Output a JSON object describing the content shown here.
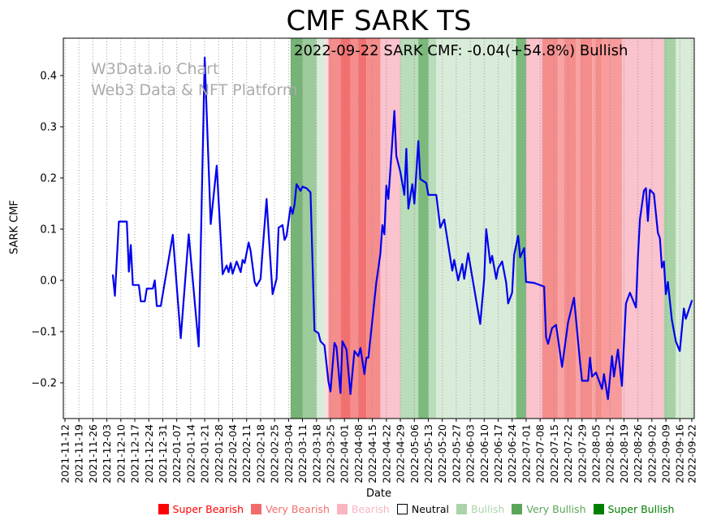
{
  "page": {
    "background": "#ffffff"
  },
  "title": "CMF SARK TS",
  "watermark": {
    "line1": "W3Data.io Chart",
    "line2": "Web3 Data & NFT Platform",
    "color": "#ababab"
  },
  "annotation": {
    "text": "2022-09-22 SARK CMF: -0.04(+54.8%) Bullish"
  },
  "chart_data": {
    "type": "line",
    "title": "CMF SARK TS",
    "xlabel": "Date",
    "ylabel": "SARK CMF",
    "x_range": [
      "2021-11-12",
      "2022-09-22"
    ],
    "ylim": [
      -0.27,
      0.473
    ],
    "grid": "vertical-dotted",
    "line_color": "#0000ee",
    "yticks": [
      0.4,
      0.3,
      0.2,
      0.1,
      0.0,
      -0.1,
      -0.2
    ],
    "ytick_labels": [
      "0.4",
      "0.3",
      "0.2",
      "0.1",
      "0.0",
      "−0.1",
      "−0.2"
    ],
    "xticks": [
      "2021-11-12",
      "2021-11-19",
      "2021-11-26",
      "2021-12-03",
      "2021-12-10",
      "2021-12-17",
      "2021-12-24",
      "2021-12-31",
      "2022-01-07",
      "2022-01-14",
      "2022-01-21",
      "2022-01-28",
      "2022-02-04",
      "2022-02-11",
      "2022-02-18",
      "2022-02-25",
      "2022-03-04",
      "2022-03-11",
      "2022-03-18",
      "2022-03-25",
      "2022-04-01",
      "2022-04-08",
      "2022-04-15",
      "2022-04-22",
      "2022-04-29",
      "2022-05-06",
      "2022-05-13",
      "2022-05-20",
      "2022-05-27",
      "2022-06-03",
      "2022-06-10",
      "2022-06-17",
      "2022-06-24",
      "2022-07-01",
      "2022-07-08",
      "2022-07-15",
      "2022-07-22",
      "2022-07-29",
      "2022-08-05",
      "2022-08-12",
      "2022-08-19",
      "2022-08-26",
      "2022-09-02",
      "2022-09-09",
      "2022-09-16",
      "2022-09-22"
    ],
    "series": [
      {
        "name": "SARK CMF",
        "points": [
          [
            "2021-12-06",
            0.01
          ],
          [
            "2021-12-07",
            -0.03
          ],
          [
            "2021-12-09",
            0.115
          ],
          [
            "2021-12-13",
            0.115
          ],
          [
            "2021-12-14",
            0.017
          ],
          [
            "2021-12-15",
            0.069
          ],
          [
            "2021-12-16",
            -0.009
          ],
          [
            "2021-12-19",
            -0.009
          ],
          [
            "2021-12-20",
            -0.041
          ],
          [
            "2021-12-22",
            -0.041
          ],
          [
            "2021-12-23",
            -0.016
          ],
          [
            "2021-12-26",
            -0.016
          ],
          [
            "2021-12-27",
            0.0
          ],
          [
            "2021-12-28",
            -0.05
          ],
          [
            "2021-12-30",
            -0.05
          ],
          [
            "2022-01-05",
            0.089
          ],
          [
            "2022-01-09",
            -0.113
          ],
          [
            "2022-01-13",
            0.09
          ],
          [
            "2022-01-18",
            -0.129
          ],
          [
            "2022-01-21",
            0.435
          ],
          [
            "2022-01-24",
            0.11
          ],
          [
            "2022-01-27",
            0.224
          ],
          [
            "2022-01-30",
            0.012
          ],
          [
            "2022-02-01",
            0.029
          ],
          [
            "2022-02-02",
            0.016
          ],
          [
            "2022-02-03",
            0.034
          ],
          [
            "2022-02-04",
            0.013
          ],
          [
            "2022-02-06",
            0.037
          ],
          [
            "2022-02-08",
            0.016
          ],
          [
            "2022-02-09",
            0.04
          ],
          [
            "2022-02-10",
            0.034
          ],
          [
            "2022-02-12",
            0.074
          ],
          [
            "2022-02-13",
            0.058
          ],
          [
            "2022-02-15",
            -0.003
          ],
          [
            "2022-02-16",
            -0.011
          ],
          [
            "2022-02-18",
            0.003
          ],
          [
            "2022-02-19",
            0.058
          ],
          [
            "2022-02-21",
            0.159
          ],
          [
            "2022-02-22",
            0.093
          ],
          [
            "2022-02-24",
            -0.027
          ],
          [
            "2022-02-26",
            0.003
          ],
          [
            "2022-02-27",
            0.103
          ],
          [
            "2022-03-01",
            0.108
          ],
          [
            "2022-03-02",
            0.079
          ],
          [
            "2022-03-03",
            0.087
          ],
          [
            "2022-03-05",
            0.143
          ],
          [
            "2022-03-06",
            0.13
          ],
          [
            "2022-03-07",
            0.148
          ],
          [
            "2022-03-08",
            0.188
          ],
          [
            "2022-03-10",
            0.175
          ],
          [
            "2022-03-11",
            0.183
          ],
          [
            "2022-03-13",
            0.18
          ],
          [
            "2022-03-15",
            0.172
          ],
          [
            "2022-03-17",
            -0.098
          ],
          [
            "2022-03-19",
            -0.103
          ],
          [
            "2022-03-20",
            -0.119
          ],
          [
            "2022-03-22",
            -0.127
          ],
          [
            "2022-03-24",
            -0.198
          ],
          [
            "2022-03-25",
            -0.217
          ],
          [
            "2022-03-27",
            -0.122
          ],
          [
            "2022-03-28",
            -0.13
          ],
          [
            "2022-03-30",
            -0.22
          ],
          [
            "2022-03-31",
            -0.119
          ],
          [
            "2022-04-02",
            -0.135
          ],
          [
            "2022-04-04",
            -0.222
          ],
          [
            "2022-04-06",
            -0.138
          ],
          [
            "2022-04-08",
            -0.148
          ],
          [
            "2022-04-09",
            -0.132
          ],
          [
            "2022-04-11",
            -0.183
          ],
          [
            "2022-04-12",
            -0.151
          ],
          [
            "2022-04-13",
            -0.151
          ],
          [
            "2022-04-17",
            -0.003
          ],
          [
            "2022-04-18",
            0.024
          ],
          [
            "2022-04-19",
            0.053
          ],
          [
            "2022-04-20",
            0.108
          ],
          [
            "2022-04-21",
            0.09
          ],
          [
            "2022-04-22",
            0.185
          ],
          [
            "2022-04-23",
            0.159
          ],
          [
            "2022-04-26",
            0.331
          ],
          [
            "2022-04-27",
            0.243
          ],
          [
            "2022-04-29",
            0.212
          ],
          [
            "2022-05-01",
            0.167
          ],
          [
            "2022-05-02",
            0.257
          ],
          [
            "2022-05-03",
            0.14
          ],
          [
            "2022-05-05",
            0.188
          ],
          [
            "2022-05-06",
            0.15
          ],
          [
            "2022-05-08",
            0.272
          ],
          [
            "2022-05-09",
            0.198
          ],
          [
            "2022-05-12",
            0.19
          ],
          [
            "2022-05-13",
            0.167
          ],
          [
            "2022-05-17",
            0.167
          ],
          [
            "2022-05-19",
            0.103
          ],
          [
            "2022-05-21",
            0.119
          ],
          [
            "2022-05-25",
            0.019
          ],
          [
            "2022-05-26",
            0.04
          ],
          [
            "2022-05-28",
            0.0
          ],
          [
            "2022-05-30",
            0.032
          ],
          [
            "2022-05-31",
            0.003
          ],
          [
            "2022-06-02",
            0.053
          ],
          [
            "2022-06-08",
            -0.085
          ],
          [
            "2022-06-10",
            0.003
          ],
          [
            "2022-06-11",
            0.1
          ],
          [
            "2022-06-13",
            0.034
          ],
          [
            "2022-06-14",
            0.048
          ],
          [
            "2022-06-16",
            0.003
          ],
          [
            "2022-06-17",
            0.024
          ],
          [
            "2022-06-19",
            0.037
          ],
          [
            "2022-06-21",
            -0.005
          ],
          [
            "2022-06-22",
            -0.045
          ],
          [
            "2022-06-24",
            -0.024
          ],
          [
            "2022-06-25",
            0.05
          ],
          [
            "2022-06-27",
            0.087
          ],
          [
            "2022-06-28",
            0.045
          ],
          [
            "2022-06-30",
            0.063
          ],
          [
            "2022-07-01",
            -0.003
          ],
          [
            "2022-07-05",
            -0.005
          ],
          [
            "2022-07-10",
            -0.012
          ],
          [
            "2022-07-11",
            -0.111
          ],
          [
            "2022-07-12",
            -0.124
          ],
          [
            "2022-07-14",
            -0.093
          ],
          [
            "2022-07-16",
            -0.087
          ],
          [
            "2022-07-19",
            -0.169
          ],
          [
            "2022-07-22",
            -0.082
          ],
          [
            "2022-07-25",
            -0.034
          ],
          [
            "2022-07-28",
            -0.159
          ],
          [
            "2022-07-29",
            -0.196
          ],
          [
            "2022-08-01",
            -0.196
          ],
          [
            "2022-08-02",
            -0.151
          ],
          [
            "2022-08-03",
            -0.188
          ],
          [
            "2022-08-05",
            -0.18
          ],
          [
            "2022-08-08",
            -0.212
          ],
          [
            "2022-08-09",
            -0.183
          ],
          [
            "2022-08-11",
            -0.232
          ],
          [
            "2022-08-13",
            -0.148
          ],
          [
            "2022-08-14",
            -0.188
          ],
          [
            "2022-08-16",
            -0.135
          ],
          [
            "2022-08-18",
            -0.206
          ],
          [
            "2022-08-20",
            -0.045
          ],
          [
            "2022-08-22",
            -0.024
          ],
          [
            "2022-08-25",
            -0.053
          ],
          [
            "2022-08-26",
            0.045
          ],
          [
            "2022-08-27",
            0.119
          ],
          [
            "2022-08-29",
            0.175
          ],
          [
            "2022-08-30",
            0.18
          ],
          [
            "2022-08-31",
            0.116
          ],
          [
            "2022-09-01",
            0.177
          ],
          [
            "2022-09-03",
            0.169
          ],
          [
            "2022-09-05",
            0.093
          ],
          [
            "2022-09-06",
            0.082
          ],
          [
            "2022-09-07",
            0.025
          ],
          [
            "2022-09-08",
            0.037
          ],
          [
            "2022-09-09",
            -0.027
          ],
          [
            "2022-09-10",
            -0.003
          ],
          [
            "2022-09-12",
            -0.077
          ],
          [
            "2022-09-14",
            -0.119
          ],
          [
            "2022-09-16",
            -0.138
          ],
          [
            "2022-09-18",
            -0.055
          ],
          [
            "2022-09-19",
            -0.075
          ],
          [
            "2022-09-22",
            -0.04
          ]
        ]
      }
    ],
    "sentiment_bands": [
      {
        "from": "2022-03-05",
        "to": "2022-03-11",
        "sentiment": "Very Bullish",
        "color": "#77b277"
      },
      {
        "from": "2022-03-11",
        "to": "2022-03-18",
        "sentiment": "Bullish",
        "color": "#9ccb9c"
      },
      {
        "from": "2022-03-18",
        "to": "2022-03-22",
        "sentiment": "Bullish",
        "color": "#d9ecd9"
      },
      {
        "from": "2022-03-22",
        "to": "2022-03-24",
        "sentiment": "Bearish",
        "color": "#fbdce0"
      },
      {
        "from": "2022-03-24",
        "to": "2022-03-30",
        "sentiment": "Very Bearish",
        "color": "#f58d8d"
      },
      {
        "from": "2022-03-30",
        "to": "2022-04-04",
        "sentiment": "Very Bearish",
        "color": "#f37070"
      },
      {
        "from": "2022-04-04",
        "to": "2022-04-08",
        "sentiment": "Very Bearish",
        "color": "#f58d8d"
      },
      {
        "from": "2022-04-08",
        "to": "2022-04-12",
        "sentiment": "Very Bearish",
        "color": "#f37070"
      },
      {
        "from": "2022-04-12",
        "to": "2022-04-19",
        "sentiment": "Very Bearish",
        "color": "#f58d8d"
      },
      {
        "from": "2022-04-19",
        "to": "2022-04-29",
        "sentiment": "Bearish",
        "color": "#fac3cd"
      },
      {
        "from": "2022-04-29",
        "to": "2022-05-08",
        "sentiment": "Bullish",
        "color": "#b9dcb9"
      },
      {
        "from": "2022-05-08",
        "to": "2022-05-13",
        "sentiment": "Very Bullish",
        "color": "#7cb97c"
      },
      {
        "from": "2022-05-13",
        "to": "2022-05-17",
        "sentiment": "Bullish",
        "color": "#b9dcb9"
      },
      {
        "from": "2022-05-17",
        "to": "2022-06-26",
        "sentiment": "Bullish",
        "color": "#d9ecd9"
      },
      {
        "from": "2022-06-26",
        "to": "2022-07-01",
        "sentiment": "Very Bullish",
        "color": "#7cb97c"
      },
      {
        "from": "2022-07-01",
        "to": "2022-07-09",
        "sentiment": "Bearish",
        "color": "#fac3cd"
      },
      {
        "from": "2022-07-09",
        "to": "2022-07-17",
        "sentiment": "Very Bearish",
        "color": "#f58d8d"
      },
      {
        "from": "2022-07-17",
        "to": "2022-07-20",
        "sentiment": "Very Bearish",
        "color": "#f9a2a2"
      },
      {
        "from": "2022-07-20",
        "to": "2022-07-26",
        "sentiment": "Very Bearish",
        "color": "#f58d8d"
      },
      {
        "from": "2022-07-26",
        "to": "2022-07-28",
        "sentiment": "Very Bearish",
        "color": "#f9a2a2"
      },
      {
        "from": "2022-07-28",
        "to": "2022-08-03",
        "sentiment": "Very Bearish",
        "color": "#f58d8d"
      },
      {
        "from": "2022-08-03",
        "to": "2022-08-05",
        "sentiment": "Very Bearish",
        "color": "#f9a2a2"
      },
      {
        "from": "2022-08-05",
        "to": "2022-08-08",
        "sentiment": "Very Bearish",
        "color": "#f58d8d"
      },
      {
        "from": "2022-08-08",
        "to": "2022-08-18",
        "sentiment": "Very Bearish",
        "color": "#f89b9b"
      },
      {
        "from": "2022-08-18",
        "to": "2022-09-08",
        "sentiment": "Bearish",
        "color": "#fac3cd"
      },
      {
        "from": "2022-09-08",
        "to": "2022-09-14",
        "sentiment": "Bullish",
        "color": "#a6d2a6"
      },
      {
        "from": "2022-09-14",
        "to": "2022-09-22",
        "sentiment": "Bullish",
        "color": "#d9ecd9"
      }
    ],
    "legend": {
      "position": "bottom",
      "items": [
        {
          "label": "Super Bearish",
          "color": "#ff0000",
          "text_color": "#ff0000",
          "border": "none"
        },
        {
          "label": "Very Bearish",
          "color": "#f26c6c",
          "text_color": "#f26c6c",
          "border": "none"
        },
        {
          "label": "Bearish",
          "color": "#f9b6c0",
          "text_color": "#f9b6c0",
          "border": "none"
        },
        {
          "label": "Neutral",
          "color": "#ffffff",
          "text_color": "#000000",
          "border": "#000000"
        },
        {
          "label": "Bullish",
          "color": "#abd4ab",
          "text_color": "#abd4ab",
          "border": "none"
        },
        {
          "label": "Very Bullish",
          "color": "#5ba55b",
          "text_color": "#5ba55b",
          "border": "none"
        },
        {
          "label": "Super Bullish",
          "color": "#008000",
          "text_color": "#008000",
          "border": "none"
        }
      ]
    }
  }
}
